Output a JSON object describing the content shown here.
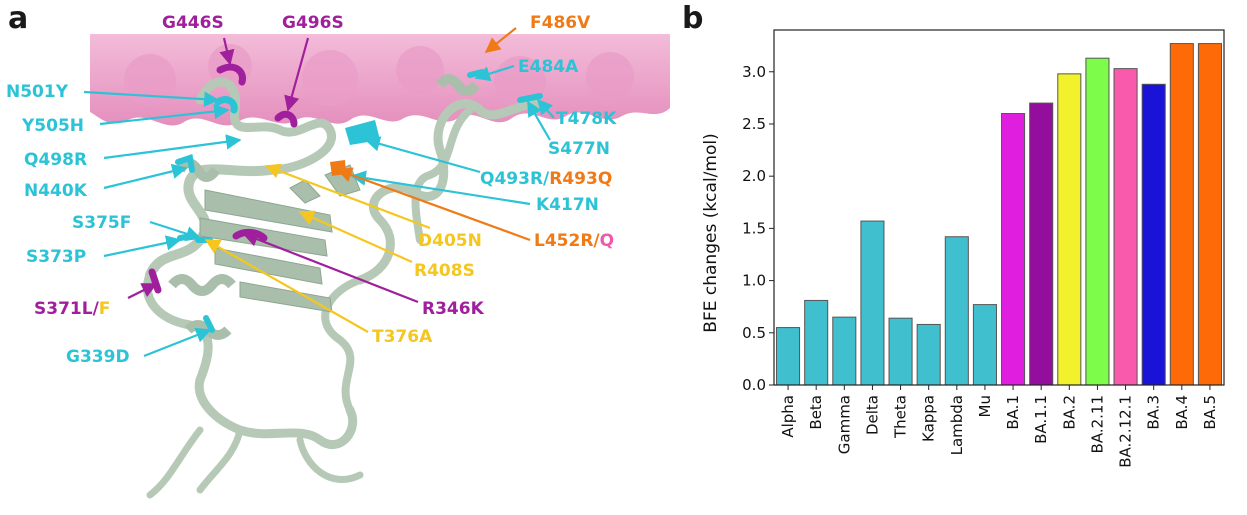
{
  "panels": {
    "a": "a",
    "b": "b"
  },
  "colors": {
    "cyan": "#2cc3d6",
    "purple": "#a01f9c",
    "orange": "#f07a16",
    "yellow": "#f5c71e",
    "pink": "#ef5aa8",
    "ribbon": "#b6c9b7",
    "surface": "#efa9cf"
  },
  "structure": {
    "labels": {
      "g446s": "G446S",
      "g496s": "G496S",
      "f486v": "F486V",
      "n501y": "N501Y",
      "e484a": "E484A",
      "y505h": "Y505H",
      "t478k": "T478K",
      "s477n": "S477N",
      "q498r": "Q498R",
      "q493r": "Q493R",
      "r493q": "R493Q",
      "n440k": "N440K",
      "k417n": "K417N",
      "s375f": "S375F",
      "d405n": "D405N",
      "l452r": "L452R",
      "l452q": "Q",
      "s373p": "S373P",
      "r408s": "R408S",
      "s371l": "S371L",
      "s371f": "F",
      "r346k": "R346K",
      "t376a": "T376A",
      "g339d": "G339D",
      "slash": "/"
    }
  },
  "chart_data": {
    "type": "bar",
    "ylabel": "BFE changes (kcal/mol)",
    "categories": [
      "Alpha",
      "Beta",
      "Gamma",
      "Delta",
      "Theta",
      "Kappa",
      "Lambda",
      "Mu",
      "BA.1",
      "BA.1.1",
      "BA.2",
      "BA.2.11",
      "BA.2.12.1",
      "BA.3",
      "BA.4",
      "BA.5"
    ],
    "values": [
      0.55,
      0.81,
      0.65,
      1.57,
      0.64,
      0.58,
      1.42,
      0.77,
      2.6,
      2.7,
      2.98,
      3.13,
      3.03,
      2.88,
      3.27,
      3.27
    ],
    "bar_colors": [
      "#40bfcf",
      "#40bfcf",
      "#40bfcf",
      "#40bfcf",
      "#40bfcf",
      "#40bfcf",
      "#40bfcf",
      "#40bfcf",
      "#e01ee0",
      "#930e9c",
      "#f2f22c",
      "#7efc4a",
      "#f95aac",
      "#1a12d6",
      "#ff6a08",
      "#ff6a08"
    ],
    "ylim": [
      0,
      3.4
    ],
    "yticks": [
      "0.0",
      "0.5",
      "1.0",
      "1.5",
      "2.0",
      "2.5",
      "3.0"
    ],
    "grid": false
  }
}
